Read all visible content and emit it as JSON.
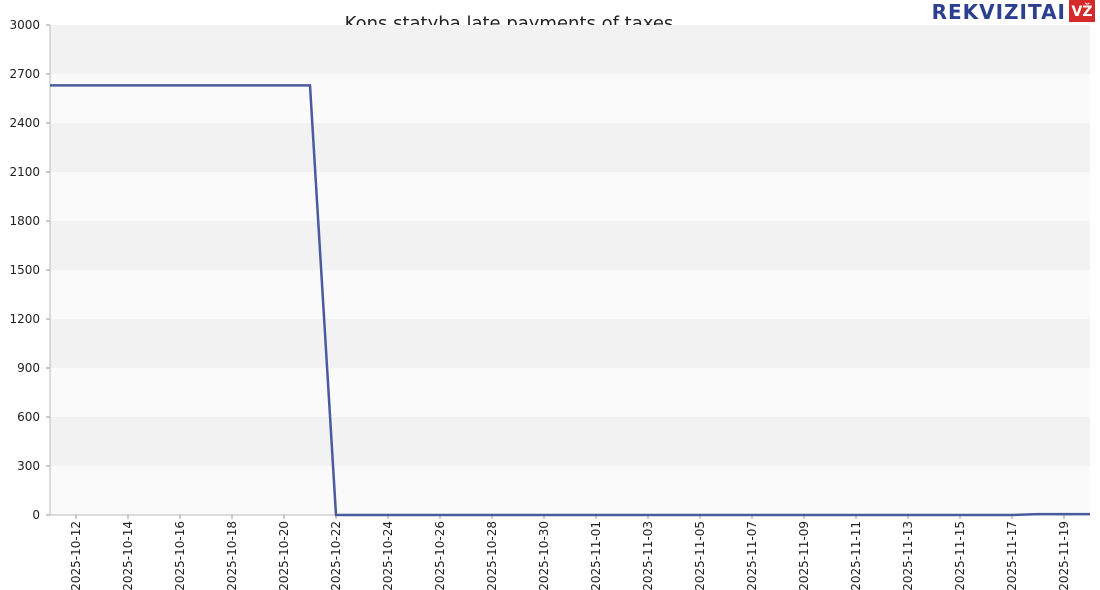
{
  "chart_data": {
    "type": "line",
    "title": "Kons statyba late payments of taxes",
    "logo": {
      "text": "REKVIZITAI",
      "badge": "VŽ"
    },
    "x": [
      "2025-10-11",
      "2025-10-12",
      "2025-10-13",
      "2025-10-14",
      "2025-10-15",
      "2025-10-16",
      "2025-10-17",
      "2025-10-18",
      "2025-10-19",
      "2025-10-20",
      "2025-10-21",
      "2025-10-22",
      "2025-10-23",
      "2025-10-24",
      "2025-10-25",
      "2025-10-26",
      "2025-10-27",
      "2025-10-28",
      "2025-10-29",
      "2025-10-30",
      "2025-10-31",
      "2025-11-01",
      "2025-11-02",
      "2025-11-03",
      "2025-11-04",
      "2025-11-05",
      "2025-11-06",
      "2025-11-07",
      "2025-11-08",
      "2025-11-09",
      "2025-11-10",
      "2025-11-11",
      "2025-11-12",
      "2025-11-13",
      "2025-11-14",
      "2025-11-15",
      "2025-11-16",
      "2025-11-17",
      "2025-11-18",
      "2025-11-19",
      "2025-11-20"
    ],
    "series": [
      {
        "name": "Late payments",
        "color": "#4a5a9e",
        "values": [
          2630,
          2630,
          2630,
          2630,
          2630,
          2630,
          2630,
          2630,
          2630,
          2630,
          2630,
          0,
          0,
          0,
          0,
          0,
          0,
          0,
          0,
          0,
          0,
          0,
          0,
          0,
          0,
          0,
          0,
          0,
          0,
          0,
          0,
          0,
          0,
          0,
          0,
          0,
          0,
          0,
          5,
          5,
          5
        ]
      }
    ],
    "xlim": [
      "2025-10-11",
      "2025-11-20"
    ],
    "xticks": [
      "2025-10-12",
      "2025-10-14",
      "2025-10-16",
      "2025-10-18",
      "2025-10-20",
      "2025-10-22",
      "2025-10-24",
      "2025-10-26",
      "2025-10-28",
      "2025-10-30",
      "2025-11-01",
      "2025-11-03",
      "2025-11-05",
      "2025-11-07",
      "2025-11-09",
      "2025-11-11",
      "2025-11-13",
      "2025-11-15",
      "2025-11-17",
      "2025-11-19"
    ],
    "ylim": [
      0,
      3000
    ],
    "yticks": [
      0,
      300,
      600,
      900,
      1200,
      1500,
      1800,
      2100,
      2400,
      2700,
      3000
    ],
    "grid": true
  }
}
